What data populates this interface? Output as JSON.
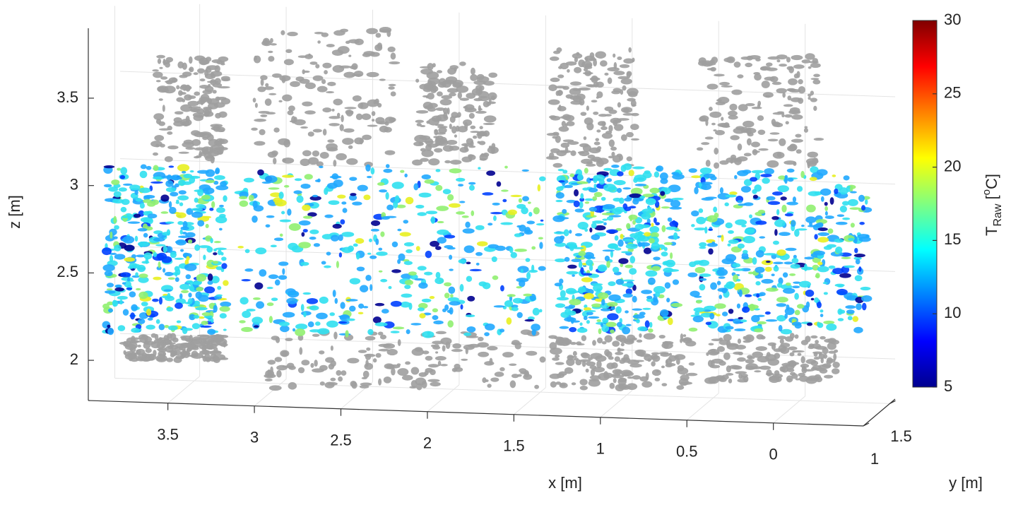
{
  "chart_data": {
    "type": "scatter3d",
    "xlabel": "x [m]",
    "ylabel": "y [m]",
    "zlabel": "z [m]",
    "xlim": [
      -0.52,
      3.96
    ],
    "xticks": [
      3.5,
      3,
      2.5,
      2,
      1.5,
      1,
      0.5,
      0
    ],
    "ylim": [
      1,
      1.6
    ],
    "yticks": [
      1,
      1.5
    ],
    "zlim": [
      1.77,
      3.9
    ],
    "zticks": [
      2,
      2.5,
      3,
      3.5
    ],
    "grid": true,
    "colorbar": {
      "colormap": "jet",
      "lim": [
        5,
        30
      ],
      "ticks": [
        5,
        10,
        15,
        20,
        25,
        30
      ],
      "label": "T",
      "label_subscript": "Raw",
      "unit_open": "[",
      "unit_superscript": "o",
      "unit_close": "C]"
    }
  }
}
